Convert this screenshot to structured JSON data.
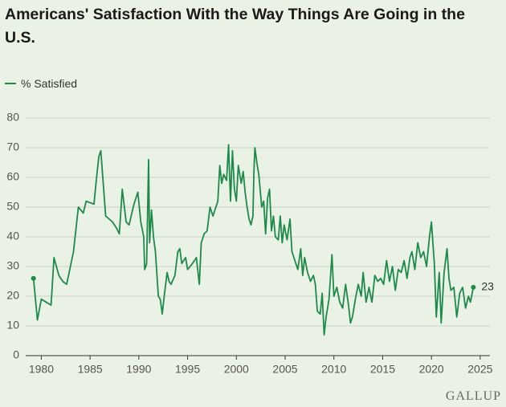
{
  "chart_data": {
    "type": "line",
    "title": "Americans' Satisfaction With the Way Things Are Going in the U.S.",
    "source": "GALLUP",
    "xlim": [
      1978.4,
      2026
    ],
    "xticks": [
      1980,
      1985,
      1990,
      1995,
      2000,
      2005,
      2010,
      2015,
      2020,
      2025
    ],
    "ylim": [
      0,
      80
    ],
    "yticks": [
      0,
      10,
      20,
      30,
      40,
      50,
      60,
      70,
      80
    ],
    "grid": true,
    "series": [
      {
        "name": "% Satisfied",
        "color": "#1e8a4a",
        "x": [
          1979.2,
          1979.6,
          1980.0,
          1981.0,
          1981.3,
          1981.8,
          1982.2,
          1982.6,
          1983.3,
          1983.8,
          1984.3,
          1984.6,
          1985.4,
          1985.7,
          1985.9,
          1986.1,
          1986.6,
          1987.3,
          1987.7,
          1988.0,
          1988.3,
          1988.7,
          1989.0,
          1989.5,
          1989.9,
          1990.2,
          1990.5,
          1990.6,
          1990.8,
          1991.0,
          1991.1,
          1991.3,
          1991.5,
          1991.7,
          1992.0,
          1992.2,
          1992.4,
          1992.6,
          1992.9,
          1993.1,
          1993.3,
          1993.7,
          1994.0,
          1994.2,
          1994.4,
          1994.8,
          1995.0,
          1995.5,
          1995.9,
          1996.2,
          1996.4,
          1996.7,
          1997.0,
          1997.3,
          1997.6,
          1997.9,
          1998.1,
          1998.3,
          1998.5,
          1998.7,
          1999.0,
          1999.2,
          1999.4,
          1999.6,
          1999.8,
          2000.0,
          2000.2,
          2000.5,
          2000.7,
          2000.9,
          2001.1,
          2001.3,
          2001.5,
          2001.7,
          2001.8,
          2001.9,
          2002.1,
          2002.3,
          2002.6,
          2002.8,
          2003.0,
          2003.2,
          2003.4,
          2003.6,
          2003.8,
          2004.0,
          2004.3,
          2004.5,
          2004.7,
          2004.9,
          2005.2,
          2005.5,
          2005.7,
          2006.0,
          2006.3,
          2006.6,
          2006.8,
          2007.0,
          2007.3,
          2007.6,
          2007.9,
          2008.1,
          2008.3,
          2008.6,
          2008.8,
          2009.0,
          2009.2,
          2009.5,
          2009.8,
          2010.0,
          2010.3,
          2010.6,
          2010.9,
          2011.2,
          2011.5,
          2011.7,
          2011.9,
          2012.2,
          2012.5,
          2012.8,
          2013.0,
          2013.3,
          2013.6,
          2013.9,
          2014.2,
          2014.5,
          2014.8,
          2015.1,
          2015.4,
          2015.7,
          2016.0,
          2016.3,
          2016.6,
          2016.9,
          2017.2,
          2017.5,
          2017.8,
          2018.0,
          2018.3,
          2018.6,
          2018.9,
          2019.2,
          2019.5,
          2019.8,
          2020.0,
          2020.3,
          2020.5,
          2020.8,
          2021.0,
          2021.3,
          2021.6,
          2021.8,
          2022.0,
          2022.3,
          2022.6,
          2022.9,
          2023.2,
          2023.5,
          2023.8,
          2024.0,
          2024.3
        ],
        "values": [
          26,
          12,
          19,
          17,
          33,
          27,
          25,
          24,
          35,
          50,
          48,
          52,
          51,
          61,
          67,
          69,
          47,
          45,
          43,
          41,
          56,
          45,
          44,
          51,
          55,
          45,
          40,
          29,
          31,
          66,
          38,
          49,
          40,
          35,
          20,
          19,
          14,
          20,
          28,
          25,
          24,
          27,
          35,
          36,
          31,
          33,
          29,
          31,
          33,
          24,
          38,
          41,
          42,
          50,
          47,
          50,
          52,
          64,
          58,
          61,
          59,
          71,
          52,
          69,
          56,
          52,
          64,
          58,
          62,
          55,
          50,
          46,
          44,
          47,
          62,
          70,
          65,
          61,
          50,
          52,
          41,
          53,
          56,
          42,
          47,
          40,
          39,
          47,
          38,
          44,
          39,
          46,
          35,
          32,
          29,
          36,
          27,
          33,
          28,
          25,
          27,
          24,
          15,
          14,
          21,
          7,
          13,
          19,
          34,
          20,
          23,
          18,
          16,
          24,
          17,
          11,
          13,
          19,
          24,
          20,
          28,
          18,
          23,
          18,
          27,
          25,
          26,
          24,
          32,
          25,
          30,
          22,
          29,
          28,
          32,
          26,
          33,
          35,
          29,
          38,
          33,
          35,
          30,
          40,
          45,
          31,
          13,
          28,
          11,
          28,
          36,
          26,
          22,
          23,
          13,
          21,
          23,
          16,
          20,
          18,
          23
        ]
      }
    ]
  }
}
